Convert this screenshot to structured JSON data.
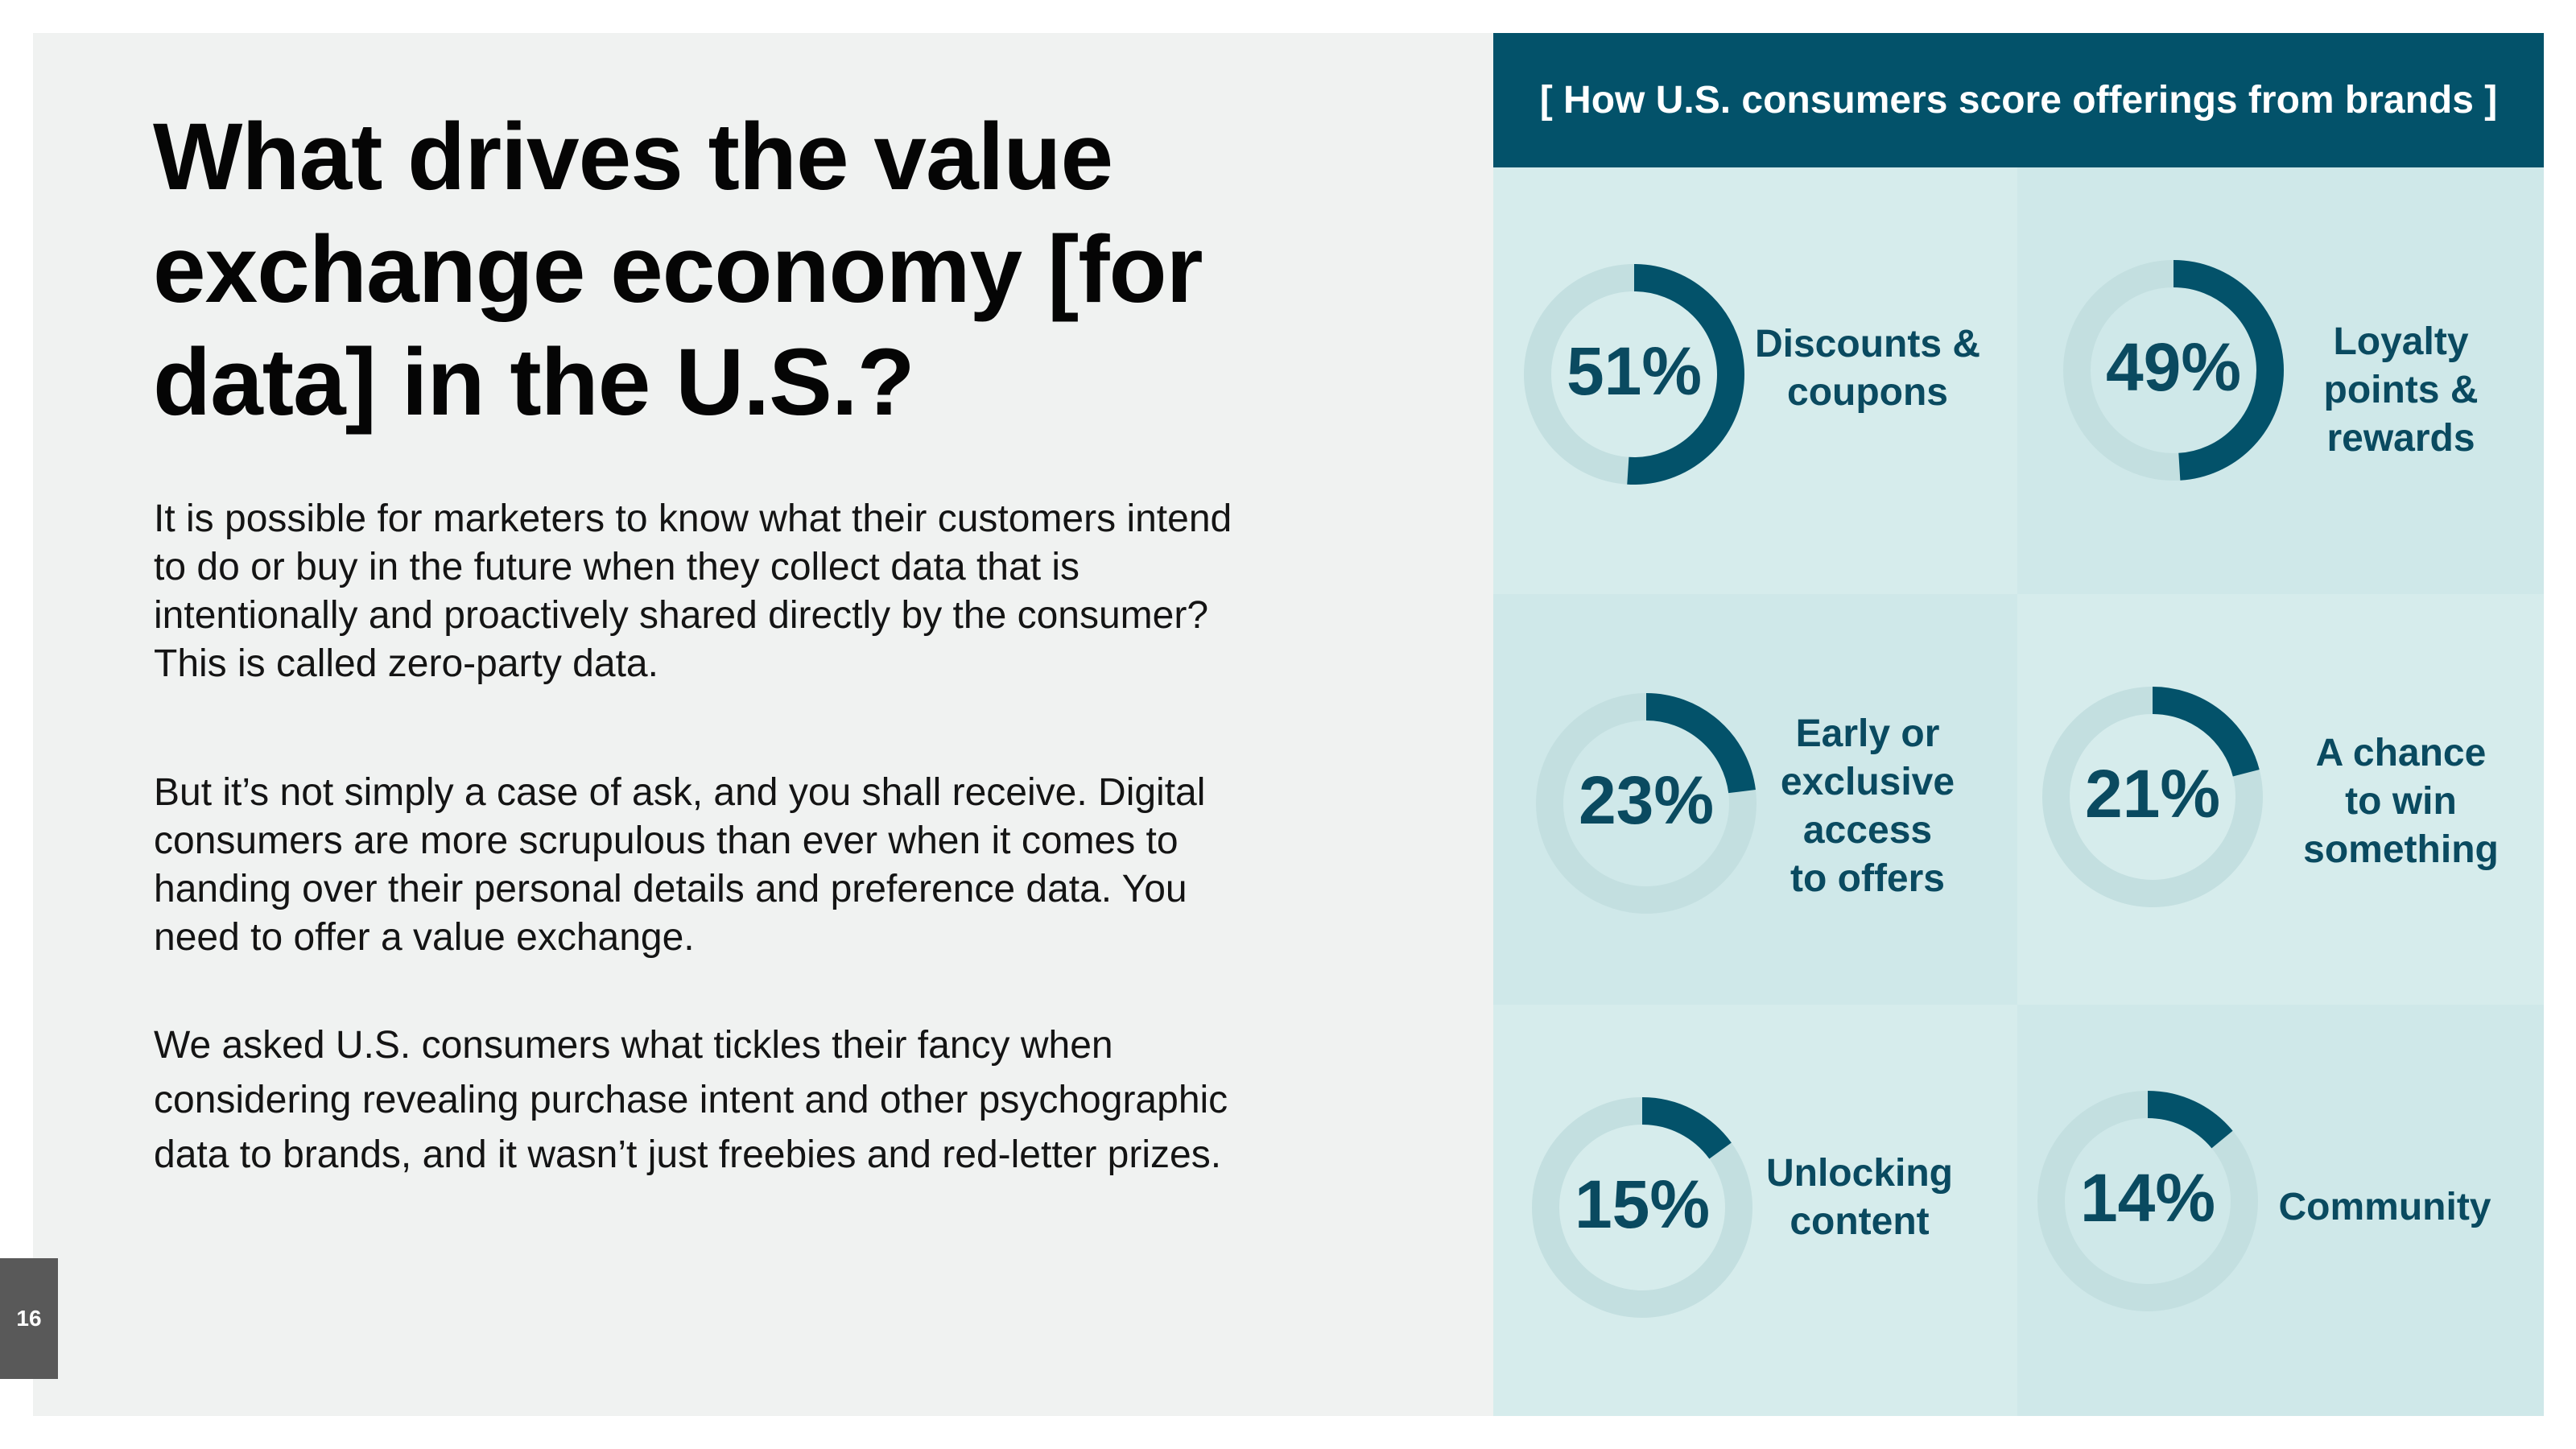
{
  "slide": {
    "title": "What drives the value exchange economy [for data] in the U.S.?",
    "paragraphs": [
      "It is possible for marketers to know what their customers intend to do or buy in the future when they collect data that is intentionally and proactively shared directly by the consumer? This is called zero-party data.",
      "But it’s not simply a case of ask, and you shall receive. Digital consumers are more scrupulous than ever when it comes to handing over their personal details and preference data. You need to offer a value exchange.",
      "We asked U.S. consumers what tickles their fancy when considering revealing purchase intent and other psychographic data to brands, and it wasn’t just freebies and red-letter prizes."
    ],
    "page_number": "16"
  },
  "colors": {
    "accent": "#03526a",
    "donut_track": "#c3dfe0",
    "cell_light": "#d6ecec",
    "cell_mid": "#cfe8e9"
  },
  "chart_data": {
    "type": "pie",
    "title": "[ How U.S. consumers score offerings from brands ]",
    "unit": "%",
    "items": [
      {
        "label": "Discounts & coupons",
        "value": 51,
        "display": "51%"
      },
      {
        "label": "Loyalty points & rewards",
        "value": 49,
        "display": "49%"
      },
      {
        "label": "Early or exclusive access to offers",
        "value": 23,
        "display": "23%"
      },
      {
        "label": "A chance to win something",
        "value": 21,
        "display": "21%"
      },
      {
        "label": "Unlocking content",
        "value": 15,
        "display": "15%"
      },
      {
        "label": "Community",
        "value": 14,
        "display": "14%"
      }
    ]
  }
}
